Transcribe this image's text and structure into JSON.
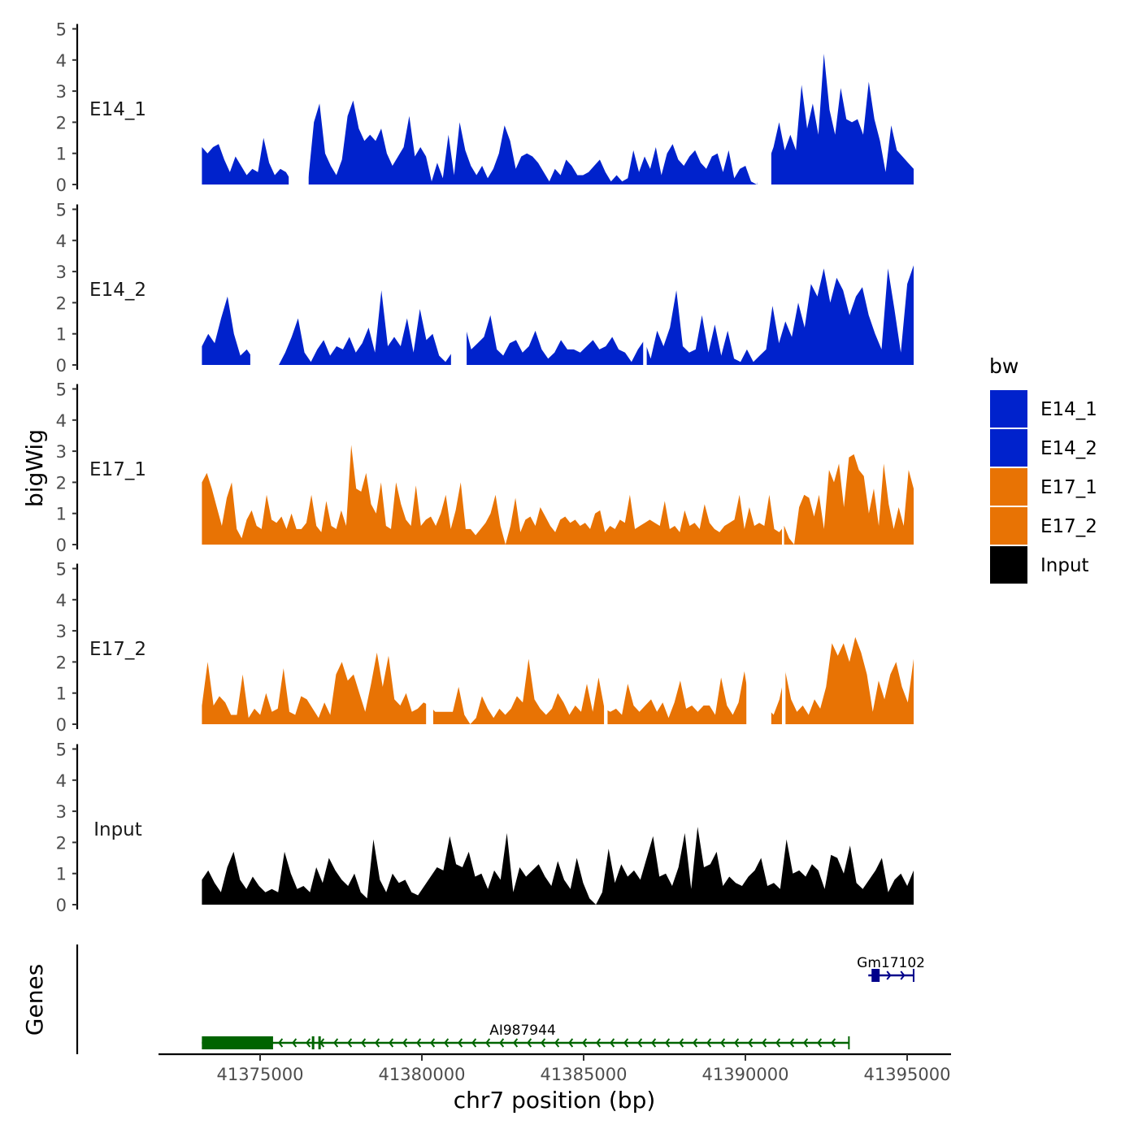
{
  "chart_data": {
    "type": "area",
    "ylabel": "bigWig",
    "xlabel": "chr7 position (bp)",
    "genes_label": "Genes",
    "ylim": [
      0,
      5
    ],
    "y_ticks": [
      "0",
      "1",
      "2",
      "3",
      "4",
      "5"
    ],
    "xlim": [
      41371000,
      41396000
    ],
    "x_ticks": [
      {
        "value": 41375000,
        "label": "41375000"
      },
      {
        "value": 41380000,
        "label": "41380000"
      },
      {
        "value": 41385000,
        "label": "41385000"
      },
      {
        "value": 41390000,
        "label": "41390000"
      },
      {
        "value": 41395000,
        "label": "41395000"
      }
    ],
    "legend": {
      "title": "bw",
      "entries": [
        {
          "label": "E14_1",
          "color": "#0022CC"
        },
        {
          "label": "E14_2",
          "color": "#0022CC"
        },
        {
          "label": "E17_1",
          "color": "#E87304"
        },
        {
          "label": "E17_2",
          "color": "#E87304"
        },
        {
          "label": "Input",
          "color": "#000000"
        }
      ]
    },
    "x_start": 41373200,
    "x_end": 41395200,
    "series": [
      {
        "name": "E14_1",
        "color": "#0022CC",
        "values": [
          1.2,
          1.0,
          1.2,
          1.3,
          0.8,
          0.4,
          0.9,
          0.6,
          0.3,
          0.5,
          0.4,
          1.5,
          0.7,
          0.3,
          0.5,
          0.4,
          0.1,
          0.4,
          0.0,
          0.2,
          2.0,
          2.6,
          1.0,
          0.6,
          0.3,
          0.8,
          2.2,
          2.7,
          1.8,
          1.4,
          1.6,
          1.4,
          1.8,
          1.0,
          0.6,
          0.9,
          1.2,
          2.2,
          0.9,
          1.2,
          0.9,
          0.1,
          0.7,
          0.2,
          1.6,
          0.3,
          2.0,
          1.1,
          0.6,
          0.3,
          0.6,
          0.2,
          0.5,
          1.0,
          1.9,
          1.4,
          0.5,
          0.9,
          1.0,
          0.9,
          0.7,
          0.4,
          0.1,
          0.5,
          0.3,
          0.8,
          0.6,
          0.3,
          0.3,
          0.4,
          0.6,
          0.8,
          0.4,
          0.1,
          0.3,
          0.1,
          0.2,
          1.1,
          0.4,
          0.9,
          0.5,
          1.2,
          0.3,
          1.0,
          1.3,
          0.8,
          0.6,
          0.9,
          1.1,
          0.7,
          0.5,
          0.9,
          1.0,
          0.4,
          1.1,
          0.2,
          0.5,
          0.6,
          0.1,
          0.0,
          1.0,
          0.7,
          1.2,
          2.0,
          1.1,
          1.6,
          1.1,
          3.2,
          1.8,
          2.6,
          1.6,
          4.2,
          2.4,
          1.6,
          3.1,
          2.1,
          2.0,
          2.1,
          1.6,
          3.3,
          2.1,
          1.4,
          0.4,
          1.9,
          1.1,
          0.9,
          0.7,
          0.5
        ],
        "gaps": [
          [
            0.122,
            0.15
          ],
          [
            0.78,
            0.8
          ]
        ]
      },
      {
        "name": "E14_2",
        "color": "#0022CC",
        "values": [
          0.6,
          1.0,
          0.7,
          1.5,
          2.2,
          1.0,
          0.3,
          0.5,
          0.2,
          0.1,
          0.2,
          0.0,
          0.0,
          0.4,
          0.9,
          1.5,
          0.4,
          0.1,
          0.5,
          0.8,
          0.3,
          0.6,
          0.5,
          0.9,
          0.4,
          0.7,
          1.2,
          0.4,
          2.4,
          0.6,
          0.9,
          0.6,
          1.5,
          0.4,
          1.8,
          0.8,
          1.0,
          0.3,
          0.1,
          0.4,
          0.9,
          1.3,
          0.5,
          0.7,
          0.9,
          1.6,
          0.5,
          0.3,
          0.7,
          0.8,
          0.4,
          0.6,
          1.1,
          0.5,
          0.2,
          0.4,
          0.8,
          0.5,
          0.5,
          0.4,
          0.6,
          0.8,
          0.5,
          0.6,
          0.9,
          0.5,
          0.4,
          0.1,
          0.5,
          0.8,
          0.2,
          1.1,
          0.6,
          1.2,
          2.4,
          0.6,
          0.4,
          0.5,
          1.6,
          0.4,
          1.3,
          0.3,
          1.1,
          0.2,
          0.1,
          0.5,
          0.1,
          0.3,
          0.5,
          1.9,
          0.7,
          1.4,
          0.9,
          2.0,
          1.2,
          2.6,
          2.2,
          3.1,
          2.0,
          2.8,
          2.4,
          1.6,
          2.2,
          2.5,
          1.6,
          1.0,
          0.5,
          3.1,
          1.8,
          0.4,
          2.6,
          3.2
        ],
        "gaps": [
          [
            0.068,
            0.105
          ],
          [
            0.35,
            0.372
          ],
          [
            0.62,
            0.625
          ]
        ]
      },
      {
        "name": "E17_1",
        "color": "#E87304",
        "values": [
          2.0,
          2.3,
          1.8,
          1.2,
          0.6,
          1.5,
          2.0,
          0.5,
          0.2,
          0.8,
          1.1,
          0.6,
          0.5,
          1.6,
          0.8,
          0.7,
          0.9,
          0.5,
          1.0,
          0.5,
          0.5,
          0.7,
          1.6,
          0.6,
          0.4,
          1.4,
          0.6,
          0.5,
          1.1,
          0.6,
          3.2,
          1.8,
          1.7,
          2.3,
          1.3,
          1.0,
          2.0,
          0.6,
          0.5,
          2.0,
          1.3,
          0.8,
          0.6,
          1.9,
          0.6,
          0.8,
          0.9,
          0.6,
          1.0,
          1.6,
          0.5,
          1.1,
          2.0,
          0.5,
          0.5,
          0.3,
          0.5,
          0.7,
          1.0,
          1.6,
          0.6,
          0.0,
          0.6,
          1.5,
          0.4,
          0.8,
          0.9,
          0.6,
          1.2,
          0.9,
          0.6,
          0.4,
          0.8,
          0.9,
          0.7,
          0.8,
          0.6,
          0.7,
          0.5,
          1.0,
          1.1,
          0.4,
          0.6,
          0.5,
          0.8,
          0.7,
          1.6,
          0.5,
          0.6,
          0.7,
          0.8,
          0.7,
          0.6,
          1.4,
          0.5,
          0.6,
          0.4,
          1.1,
          0.6,
          0.7,
          0.5,
          1.3,
          0.7,
          0.5,
          0.4,
          0.6,
          0.7,
          0.8,
          1.6,
          0.5,
          1.2,
          0.6,
          0.7,
          0.6,
          1.6,
          0.5,
          0.4,
          0.6,
          0.2,
          0.0,
          1.2,
          1.6,
          1.5,
          0.9,
          1.6,
          0.5,
          2.4,
          2.0,
          2.6,
          1.2,
          2.8,
          2.9,
          2.4,
          2.2,
          1.0,
          1.8,
          0.6,
          2.6,
          1.3,
          0.5,
          1.2,
          0.6,
          2.4,
          1.8
        ],
        "gaps": [
          [
            0.815,
            0.818
          ]
        ]
      },
      {
        "name": "E17_2",
        "color": "#E87304",
        "values": [
          0.6,
          2.0,
          0.6,
          0.9,
          0.7,
          0.3,
          0.3,
          1.6,
          0.2,
          0.5,
          0.3,
          1.0,
          0.4,
          0.5,
          1.8,
          0.4,
          0.3,
          0.9,
          0.8,
          0.5,
          0.2,
          0.7,
          0.3,
          1.6,
          2.0,
          1.4,
          1.6,
          1.0,
          0.4,
          1.3,
          2.3,
          1.2,
          2.2,
          0.8,
          0.6,
          1.0,
          0.4,
          0.5,
          0.7,
          0.6,
          0.4,
          0.4,
          0.4,
          0.4,
          1.2,
          0.3,
          0.0,
          0.2,
          0.9,
          0.5,
          0.2,
          0.5,
          0.3,
          0.5,
          0.9,
          0.7,
          2.1,
          0.8,
          0.5,
          0.3,
          0.5,
          1.0,
          0.7,
          0.3,
          0.6,
          0.4,
          1.3,
          0.4,
          1.5,
          0.5,
          0.4,
          0.5,
          0.3,
          1.3,
          0.6,
          0.4,
          0.6,
          0.8,
          0.4,
          0.7,
          0.2,
          0.7,
          1.4,
          0.5,
          0.6,
          0.4,
          0.6,
          0.6,
          0.3,
          1.5,
          0.6,
          0.3,
          0.7,
          1.7,
          0.5,
          0.9,
          0.8,
          0.5,
          0.3,
          0.8,
          1.7,
          0.8,
          0.4,
          0.6,
          0.3,
          0.8,
          0.5,
          1.2,
          2.6,
          2.2,
          2.6,
          2.0,
          2.8,
          2.3,
          1.6,
          0.4,
          1.4,
          0.8,
          1.6,
          2.0,
          1.2,
          0.7,
          2.1
        ],
        "gaps": [
          [
            0.315,
            0.325
          ],
          [
            0.565,
            0.57
          ],
          [
            0.765,
            0.8
          ],
          [
            0.815,
            0.82
          ]
        ]
      },
      {
        "name": "Input",
        "color": "#000000",
        "values": [
          0.8,
          1.1,
          0.7,
          0.4,
          1.2,
          1.7,
          0.8,
          0.5,
          0.9,
          0.6,
          0.4,
          0.5,
          0.4,
          1.7,
          1.0,
          0.5,
          0.6,
          0.4,
          1.2,
          0.7,
          1.5,
          1.1,
          0.8,
          0.6,
          1.0,
          0.4,
          0.2,
          2.1,
          0.8,
          0.4,
          1.0,
          0.7,
          0.8,
          0.4,
          0.3,
          0.6,
          0.9,
          1.2,
          1.1,
          2.2,
          1.3,
          1.2,
          1.7,
          0.9,
          1.0,
          0.5,
          1.1,
          0.8,
          2.3,
          0.4,
          1.2,
          0.9,
          1.1,
          1.3,
          0.9,
          0.6,
          1.4,
          0.8,
          0.5,
          1.5,
          0.7,
          0.2,
          0.0,
          0.4,
          1.8,
          0.7,
          1.3,
          0.9,
          1.1,
          0.8,
          1.5,
          2.2,
          0.9,
          1.0,
          0.6,
          1.2,
          2.3,
          0.5,
          2.5,
          1.2,
          1.3,
          1.7,
          0.6,
          0.9,
          0.7,
          0.6,
          0.9,
          1.1,
          1.5,
          0.6,
          0.7,
          0.5,
          2.1,
          1.0,
          1.1,
          0.9,
          1.3,
          1.1,
          0.5,
          1.6,
          1.5,
          1.0,
          1.9,
          0.7,
          0.5,
          0.8,
          1.1,
          1.5,
          0.4,
          0.8,
          1.0,
          0.6,
          1.1
        ],
        "gaps": [
          [
            0.5,
            0.5
          ]
        ]
      }
    ],
    "genes": [
      {
        "name": "AI987944",
        "color": "#006400",
        "strand": "-",
        "start": 41373200,
        "end": 41393200,
        "exons": [
          [
            41373200,
            41375400
          ],
          [
            41376600,
            41376660
          ],
          [
            41376800,
            41376850
          ]
        ]
      },
      {
        "name": "Gm17102",
        "color": "#00008B",
        "strand": "+",
        "start": 41393800,
        "end": 41395200,
        "exons": [
          [
            41393900,
            41394150
          ]
        ]
      }
    ]
  }
}
